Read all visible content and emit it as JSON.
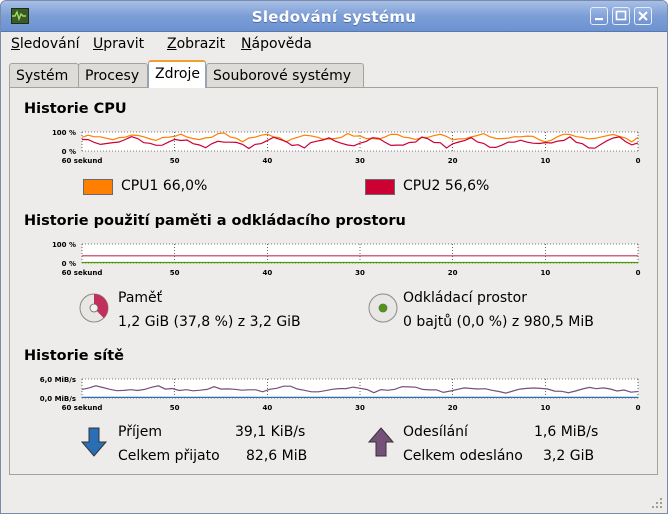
{
  "window": {
    "title": "Sledování systému",
    "buttons": [
      "minimize-icon",
      "maximize-icon",
      "close-icon"
    ]
  },
  "menubar": {
    "items": [
      {
        "accel": "S",
        "rest": "ledování"
      },
      {
        "accel": "U",
        "rest": "pravit"
      },
      {
        "accel": "Z",
        "rest": "obrazit"
      },
      {
        "accel": "N",
        "rest": "ápověda"
      }
    ]
  },
  "tabs": [
    {
      "label": "Systém",
      "active": false
    },
    {
      "label": "Procesy",
      "active": false
    },
    {
      "label": "Zdroje",
      "active": true
    },
    {
      "label": "Souborové systémy",
      "active": false
    }
  ],
  "cpu": {
    "title": "Historie CPU",
    "y_top_label": "100 %",
    "y_bottom_label": "0 %",
    "x_labels": [
      "60 sekund",
      "50",
      "40",
      "30",
      "20",
      "10",
      "0"
    ],
    "cpu1": {
      "label": "CPU1",
      "value": "66,0%",
      "color": "#ff7f00"
    },
    "cpu2": {
      "label": "CPU2",
      "value": "56,6%",
      "color": "#cc0033"
    }
  },
  "memory": {
    "title": "Historie použití paměti a odkládacího prostoru",
    "y_top_label": "100 %",
    "y_bottom_label": "0 %",
    "x_labels": [
      "60 sekund",
      "50",
      "40",
      "30",
      "20",
      "10",
      "0"
    ],
    "ram": {
      "label": "Paměť",
      "detail": "1,2 GiB (37,8 %) z 3,2 GiB",
      "fraction": 0.378,
      "color": "#c0305a"
    },
    "swap": {
      "label": "Odkládací prostor",
      "detail": "0 bajtů (0,0 %) z 980,5 MiB",
      "fraction": 0.0,
      "color": "#4e9a06"
    }
  },
  "network": {
    "title": "Historie sítě",
    "y_top_label": "6,0 MiB/s",
    "y_bottom_label": "0,0 MiB/s",
    "x_labels": [
      "60 sekund",
      "50",
      "40",
      "30",
      "20",
      "10",
      "0"
    ],
    "received": {
      "label": "Příjem",
      "rate": "39,1 KiB/s",
      "total_label": "Celkem přijato",
      "total": "82,6 MiB",
      "color": "#2a6fb6"
    },
    "sent": {
      "label": "Odesílání",
      "rate": "1,6 MiB/s",
      "total_label": "Celkem odesláno",
      "total": "3,2 GiB",
      "color": "#75507b"
    }
  }
}
